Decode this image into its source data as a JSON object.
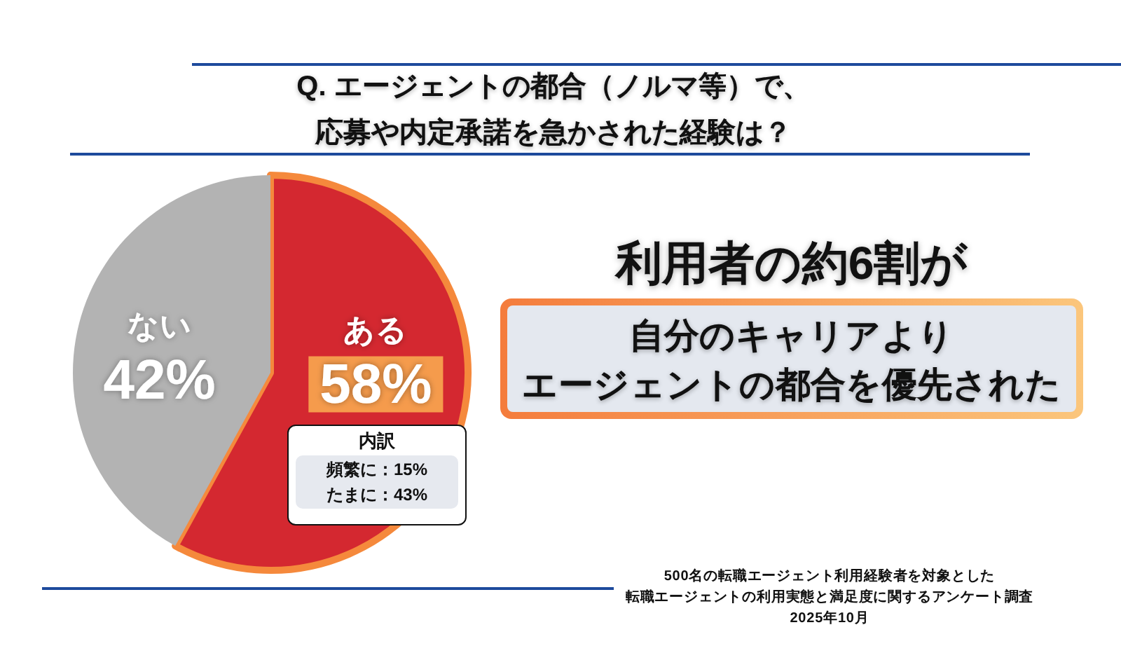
{
  "chart_data": {
    "type": "pie",
    "title": "Q. エージェントの都合（ノルマ等）で、応募や内定承諾を急かされた経験は？",
    "categories": [
      "ある",
      "ない"
    ],
    "values": [
      58,
      42
    ],
    "colors": [
      "#d42830",
      "#b3b3b3"
    ],
    "value_labels": [
      "58%",
      "42%"
    ],
    "annotations": [
      "利用者の約6割が",
      "自分のキャリアよりエージェントの都合を優先された",
      "内訳",
      "頻繁に：15%",
      "たまに：43%",
      "500名の転職エージェント利用経験者を対象とした転職エージェントの利用実態と満足度に関するアンケート調査",
      "2025年10月"
    ]
  }
}
